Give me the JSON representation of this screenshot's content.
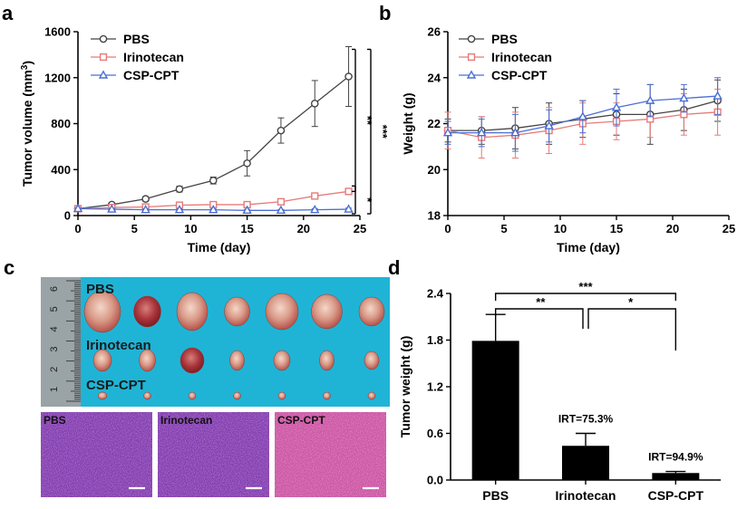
{
  "chart_data": [
    {
      "panel": "a",
      "type": "line",
      "xlabel": "Time (day)",
      "ylabel": "Tumor volume (mm",
      "ylabel_sup": "3",
      "ylabel_tail": ")",
      "xlim": [
        0,
        25
      ],
      "ylim": [
        0,
        1600
      ],
      "xticks": [
        0,
        5,
        10,
        15,
        20,
        25
      ],
      "yticks": [
        0,
        400,
        800,
        1200,
        1600
      ],
      "legend_position": "top-left",
      "x": [
        0,
        3,
        6,
        9,
        12,
        15,
        18,
        21,
        24
      ],
      "series": [
        {
          "name": "PBS",
          "marker": "circle",
          "color": "#444444",
          "values": [
            60,
            95,
            145,
            230,
            305,
            455,
            740,
            975,
            1210
          ],
          "errors": [
            10,
            15,
            20,
            25,
            30,
            110,
            110,
            200,
            260
          ]
        },
        {
          "name": "Irinotecan",
          "marker": "square",
          "color": "#e77a7a",
          "values": [
            60,
            70,
            75,
            90,
            95,
            95,
            120,
            170,
            210
          ],
          "errors": [
            10,
            10,
            15,
            15,
            15,
            20,
            20,
            25,
            25
          ]
        },
        {
          "name": "CSP-CPT",
          "marker": "triangle",
          "color": "#4a6ed3",
          "values": [
            60,
            55,
            50,
            50,
            50,
            45,
            45,
            50,
            55
          ],
          "errors": [
            8,
            8,
            8,
            8,
            8,
            8,
            8,
            10,
            10
          ]
        }
      ],
      "significance": [
        {
          "between": [
            "PBS",
            "Irinotecan"
          ],
          "label": "**"
        },
        {
          "between": [
            "PBS",
            "CSP-CPT"
          ],
          "label": "***"
        },
        {
          "between": [
            "Irinotecan",
            "CSP-CPT"
          ],
          "label": "*"
        }
      ]
    },
    {
      "panel": "b",
      "type": "line",
      "xlabel": "Time (day)",
      "ylabel": "Weight (g)",
      "xlim": [
        0,
        25
      ],
      "ylim": [
        18,
        26
      ],
      "xticks": [
        0,
        5,
        10,
        15,
        20,
        25
      ],
      "yticks": [
        18,
        20,
        22,
        24,
        26
      ],
      "legend_position": "top-left",
      "x": [
        0,
        3,
        6,
        9,
        12,
        15,
        18,
        21,
        24
      ],
      "series": [
        {
          "name": "PBS",
          "marker": "circle",
          "color": "#444444",
          "values": [
            21.7,
            21.7,
            21.8,
            22.0,
            22.2,
            22.4,
            22.4,
            22.6,
            23.0
          ],
          "errors": [
            0.5,
            0.6,
            0.9,
            0.9,
            0.8,
            0.9,
            1.3,
            0.9,
            0.9
          ]
        },
        {
          "name": "Irinotecan",
          "marker": "square",
          "color": "#e77a7a",
          "values": [
            21.7,
            21.4,
            21.5,
            21.7,
            22.0,
            22.1,
            22.2,
            22.4,
            22.5
          ],
          "errors": [
            0.8,
            0.9,
            1.0,
            1.0,
            0.9,
            0.8,
            0.8,
            0.9,
            1.0
          ]
        },
        {
          "name": "CSP-CPT",
          "marker": "triangle",
          "color": "#4a6ed3",
          "values": [
            21.6,
            21.6,
            21.6,
            21.9,
            22.3,
            22.7,
            23.0,
            23.1,
            23.2
          ],
          "errors": [
            0.5,
            0.6,
            0.8,
            0.7,
            0.7,
            0.8,
            0.7,
            0.6,
            0.8
          ]
        }
      ]
    },
    {
      "panel": "d",
      "type": "bar",
      "xlabel": "",
      "ylabel": "Tumor weight (g)",
      "ylim": [
        0,
        2.4
      ],
      "yticks": [
        "0.0",
        "0.6",
        "1.2",
        "1.8",
        "2.4"
      ],
      "categories": [
        "PBS",
        "Irinotecan",
        "CSP-CPT"
      ],
      "values": [
        1.79,
        0.44,
        0.09
      ],
      "errors": [
        0.34,
        0.16,
        0.02
      ],
      "color": "#000000",
      "annotations": [
        {
          "category": "Irinotecan",
          "text": "IRT=75.3%"
        },
        {
          "category": "CSP-CPT",
          "text": "IRT=94.9%"
        }
      ],
      "significance": [
        {
          "between": [
            "PBS",
            "CSP-CPT"
          ],
          "label": "***"
        },
        {
          "between": [
            "PBS",
            "Irinotecan"
          ],
          "label": "**"
        },
        {
          "between": [
            "Irinotecan",
            "CSP-CPT"
          ],
          "label": "*"
        }
      ]
    }
  ],
  "panel_c": {
    "letter": "c",
    "photo": {
      "background_color": "#1fb4d6",
      "ruler_numbers": [
        "6",
        "5",
        "4",
        "3",
        "2",
        "1"
      ],
      "groups": [
        {
          "label": "PBS",
          "tumor_count": 7
        },
        {
          "label": "Irinotecan",
          "tumor_count": 7
        },
        {
          "label": "CSP-CPT",
          "tumor_count": 7
        }
      ]
    },
    "histology": [
      {
        "label": "PBS"
      },
      {
        "label": "Irinotecan"
      },
      {
        "label": "CSP-CPT"
      }
    ]
  }
}
